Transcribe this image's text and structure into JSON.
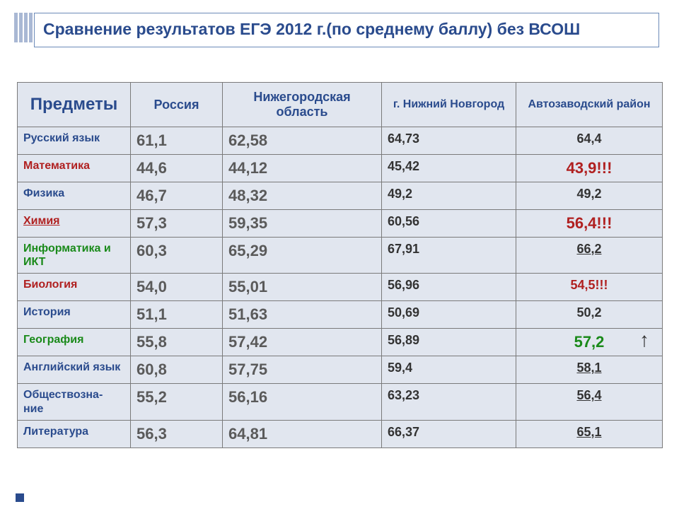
{
  "title": "Сравнение результатов ЕГЭ 2012 г.(по среднему баллу) без ВСОШ",
  "columns": [
    "Предметы",
    "Россия",
    "Нижегородская область",
    "г. Нижний Новгород",
    "Автозаводский район"
  ],
  "rows": [
    {
      "subject": "Русский язык",
      "subject_class": "",
      "c2": "61,1",
      "c3": "62,58",
      "c4": "64,73",
      "c5": "64,4",
      "c5_class": ""
    },
    {
      "subject": "Математика",
      "subject_class": "c-red",
      "c2": "44,6",
      "c3": "44,12",
      "c4": "45,42",
      "c5": "43,9!!!",
      "c5_class": "c-red f-large"
    },
    {
      "subject": "Физика",
      "subject_class": "",
      "c2": "46,7",
      "c3": "48,32",
      "c4": "49,2",
      "c5": "49,2",
      "c5_class": ""
    },
    {
      "subject": "Химия",
      "subject_class": "c-red c-under",
      "c2": "57,3",
      "c3": "59,35",
      "c4": "60,56",
      "c5": "56,4!!!",
      "c5_class": "c-red f-large"
    },
    {
      "subject": "Информатика и ИКТ",
      "subject_class": "c-green",
      "c2": "60,3",
      "c3": "65,29",
      "c4": "67,91",
      "c5": "66,2",
      "c5_class": "c-under"
    },
    {
      "subject": "Биология",
      "subject_class": "c-red",
      "c2": "54,0",
      "c3": "55,01",
      "c4": "56,96",
      "c5": "54,5!!!",
      "c5_class": "c-red"
    },
    {
      "subject": "История",
      "subject_class": "",
      "c2": "51,1",
      "c3": "51,63",
      "c4": "50,69",
      "c5": "50,2",
      "c5_class": ""
    },
    {
      "subject": "География",
      "subject_class": "c-green",
      "c2": "55,8",
      "c3": "57,42",
      "c4": "56,89",
      "c5": "57,2",
      "c5_class": "c-green f-large",
      "arrow": "↑"
    },
    {
      "subject": "Английский язык",
      "subject_class": "",
      "c2": "60,8",
      "c3": "57,75",
      "c4": "59,4",
      "c5": "58,1",
      "c5_class": "c-under"
    },
    {
      "subject": "Обществозна- ние",
      "subject_class": "",
      "c2": "55,2",
      "c3": "56,16",
      "c4": "63,23",
      "c5": "56,4",
      "c5_class": "c-under"
    },
    {
      "subject": "Литература",
      "subject_class": "",
      "c2": "56,3",
      "c3": "64,81",
      "c4": "66,37",
      "c5": "65,1",
      "c5_class": "c-under"
    }
  ],
  "colors": {
    "title": "#2a4b8d",
    "header_bg": "#e1e6ef",
    "border": "#7a7a7a"
  }
}
